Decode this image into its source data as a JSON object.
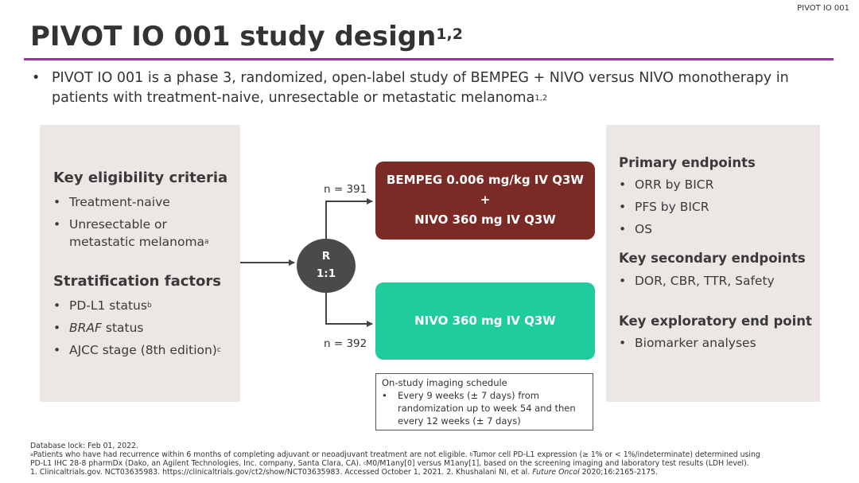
{
  "tag": "PIVOT IO 001",
  "title": {
    "text": "PIVOT IO 001 study design",
    "sup": "1,2"
  },
  "intro": {
    "bullet": "•",
    "text": "PIVOT IO 001 is a phase 3, randomized, open-label study of BEMPEG + NIVO versus NIVO monotherapy in patients with treatment-naive, unresectable or metastatic melanoma",
    "sup": "1,2"
  },
  "eligibility": {
    "heading": "Key eligibility criteria",
    "items": [
      "Treatment-naive",
      "Unresectable or",
      "metastatic melanoma"
    ],
    "item_sup": "a"
  },
  "stratification": {
    "heading": "Stratification factors",
    "items": [
      {
        "pre": "PD-L1 status",
        "ital": "",
        "sup": "b"
      },
      {
        "pre": "",
        "ital": "BRAF",
        "post": " status"
      },
      {
        "pre": "AJCC stage (8th edition)",
        "sup": "c"
      }
    ]
  },
  "randomization": {
    "line1": "R",
    "line2": "1:1"
  },
  "arms": [
    {
      "n_label": "n = 391",
      "line1": "BEMPEG 0.006 mg/kg IV Q3W",
      "plus": "+",
      "line2": "NIVO 360 mg IV Q3W",
      "color": "#7b2a26"
    },
    {
      "n_label": "n = 392",
      "line1": "NIVO 360 mg IV Q3W",
      "color": "#1fcc9e"
    }
  ],
  "imaging": {
    "title": "On-study imaging schedule",
    "bullet": "•",
    "line1": "Every 9 weeks (± 7 days) from",
    "line2": "randomization up to week 54 and then",
    "line3": "every 12 weeks (± 7 days)"
  },
  "endpoints": {
    "primary": {
      "heading": "Primary endpoints",
      "items": [
        "ORR by BICR",
        "PFS by BICR",
        "OS"
      ]
    },
    "secondary": {
      "heading": "Key secondary endpoints",
      "items": [
        "DOR, CBR, TTR, Safety"
      ]
    },
    "exploratory": {
      "heading": "Key exploratory end point",
      "items": [
        "Biomarker analyses"
      ]
    }
  },
  "footer": {
    "line1": "Database lock: Feb 01, 2022.",
    "line2_a_sup": "a",
    "line2_a": "Patients who have had recurrence within 6 months of completing adjuvant or neoadjuvant treatment are not eligible. ",
    "line2_b_sup": "b",
    "line2_b": "Tumor cell PD-L1 expression (≥ 1% or < 1%/indeterminate) determined using",
    "line3_a": "PD-L1 IHC 28-8 pharmDx (Dako, an Agilent Technologies, Inc. company, Santa Clara, CA). ",
    "line3_c_sup": "c",
    "line3_c": "M0/M1any[0] versus M1any[1], based on the screening imaging and laboratory test results (LDH level).",
    "line4_a": "1. Clinicaltrials.gov. NCT03635983. https://clinicaltrials.gov/ct2/show/NCT03635983. Accessed October 1, 2021. 2. Khushalani NI, et al. ",
    "line4_ital": "Future Oncol",
    "line4_b": " 2020;16:2165-2175."
  },
  "colors": {
    "accent_rule": "#a22fa6",
    "panel": "#ece6e4",
    "randomization": "#4a4a4a",
    "arrow": "#444444"
  }
}
